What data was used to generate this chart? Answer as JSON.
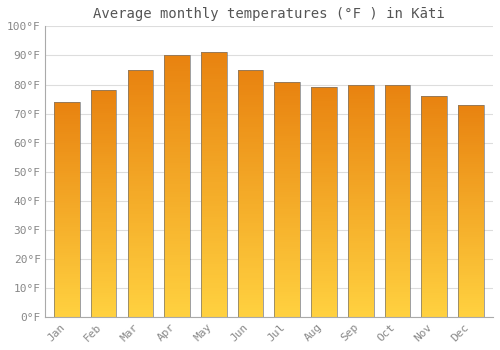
{
  "title": "Average monthly temperatures (°F ) in Kāti",
  "months": [
    "Jan",
    "Feb",
    "Mar",
    "Apr",
    "May",
    "Jun",
    "Jul",
    "Aug",
    "Sep",
    "Oct",
    "Nov",
    "Dec"
  ],
  "values": [
    74,
    78,
    85,
    90,
    91,
    85,
    81,
    79,
    80,
    80,
    76,
    73
  ],
  "bar_color_bottom": "#FFD060",
  "bar_color_top": "#E8820A",
  "bar_edge_color": "#888888",
  "background_color": "#FFFFFF",
  "grid_color": "#DDDDDD",
  "ylim": [
    0,
    100
  ],
  "yticks": [
    0,
    10,
    20,
    30,
    40,
    50,
    60,
    70,
    80,
    90,
    100
  ],
  "ytick_labels": [
    "0°F",
    "10°F",
    "20°F",
    "30°F",
    "40°F",
    "50°F",
    "60°F",
    "70°F",
    "80°F",
    "90°F",
    "100°F"
  ],
  "tick_color": "#888888",
  "axis_color": "#AAAAAA",
  "font_family": "monospace",
  "title_fontsize": 10,
  "tick_fontsize": 8
}
